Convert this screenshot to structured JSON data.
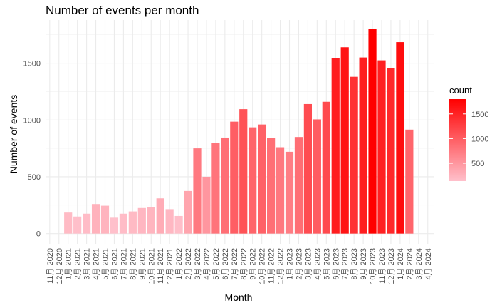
{
  "chart_data": {
    "type": "bar",
    "title": "Number of events per month",
    "xlabel": "Month",
    "ylabel": "Number of events",
    "categories": [
      "11月 2020",
      "12月 2020",
      "1月 2021",
      "2月 2021",
      "3月 2021",
      "4月 2021",
      "5月 2021",
      "6月 2021",
      "7月 2021",
      "8月 2021",
      "9月 2021",
      "10月 2021",
      "11月 2021",
      "12月 2021",
      "1月 2022",
      "2月 2022",
      "3月 2022",
      "4月 2022",
      "5月 2022",
      "6月 2022",
      "7月 2022",
      "8月 2022",
      "9月 2022",
      "10月 2022",
      "11月 2022",
      "12月 2022",
      "1月 2023",
      "2月 2023",
      "3月 2023",
      "4月 2023",
      "5月 2023",
      "6月 2023",
      "7月 2023",
      "8月 2023",
      "9月 2023",
      "10月 2023",
      "11月 2023",
      "12月 2023",
      "1月 2024",
      "2月 2024",
      "3月 2024",
      "4月 2024"
    ],
    "values": [
      null,
      null,
      185,
      150,
      175,
      260,
      245,
      140,
      175,
      195,
      225,
      235,
      310,
      215,
      155,
      375,
      750,
      500,
      795,
      845,
      985,
      1095,
      935,
      960,
      840,
      760,
      720,
      850,
      1140,
      1005,
      1160,
      1545,
      1640,
      1380,
      1550,
      1800,
      1525,
      1455,
      1685,
      915,
      null,
      null
    ],
    "ylim": [
      -90,
      1880
    ],
    "yticks": [
      0,
      500,
      1000,
      1500
    ],
    "grid": true,
    "legend": {
      "title": "count",
      "position": "right",
      "labels": [
        500,
        1000,
        1500
      ],
      "low_color": "#FFC0CB",
      "high_color": "#FF0000",
      "range": [
        140,
        1800
      ]
    }
  }
}
